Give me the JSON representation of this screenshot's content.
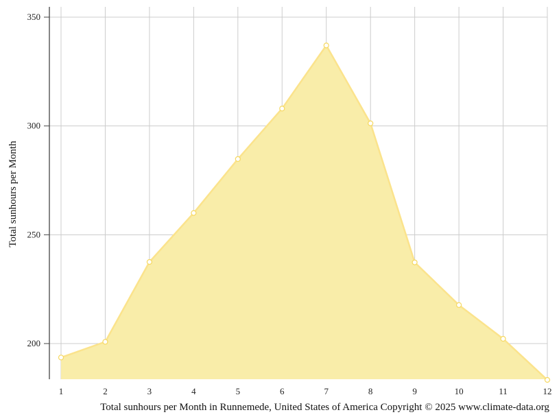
{
  "chart_data": {
    "type": "area",
    "ylabel": "Total sunhours per Month",
    "caption": "Total sunhours per Month in Runnemede, United States of America Copyright © 2025 www.climate-data.org",
    "x": [
      1,
      2,
      3,
      4,
      5,
      6,
      7,
      8,
      9,
      10,
      11,
      12
    ],
    "values": [
      193.6,
      200.8,
      237.5,
      260.0,
      284.8,
      308.0,
      337.0,
      301.2,
      237.3,
      217.7,
      202.2,
      183.3
    ],
    "xlim": [
      1,
      12
    ],
    "ylim": [
      183,
      355
    ],
    "yticks": [
      200,
      250,
      300,
      350
    ],
    "grid": true,
    "colors": {
      "fill": "#f9eda9",
      "line": "#fbe38c",
      "marker_stroke": "#f6d860",
      "marker_fill": "#ffffff",
      "grid": "#cccccc",
      "axis": "#444444"
    }
  }
}
